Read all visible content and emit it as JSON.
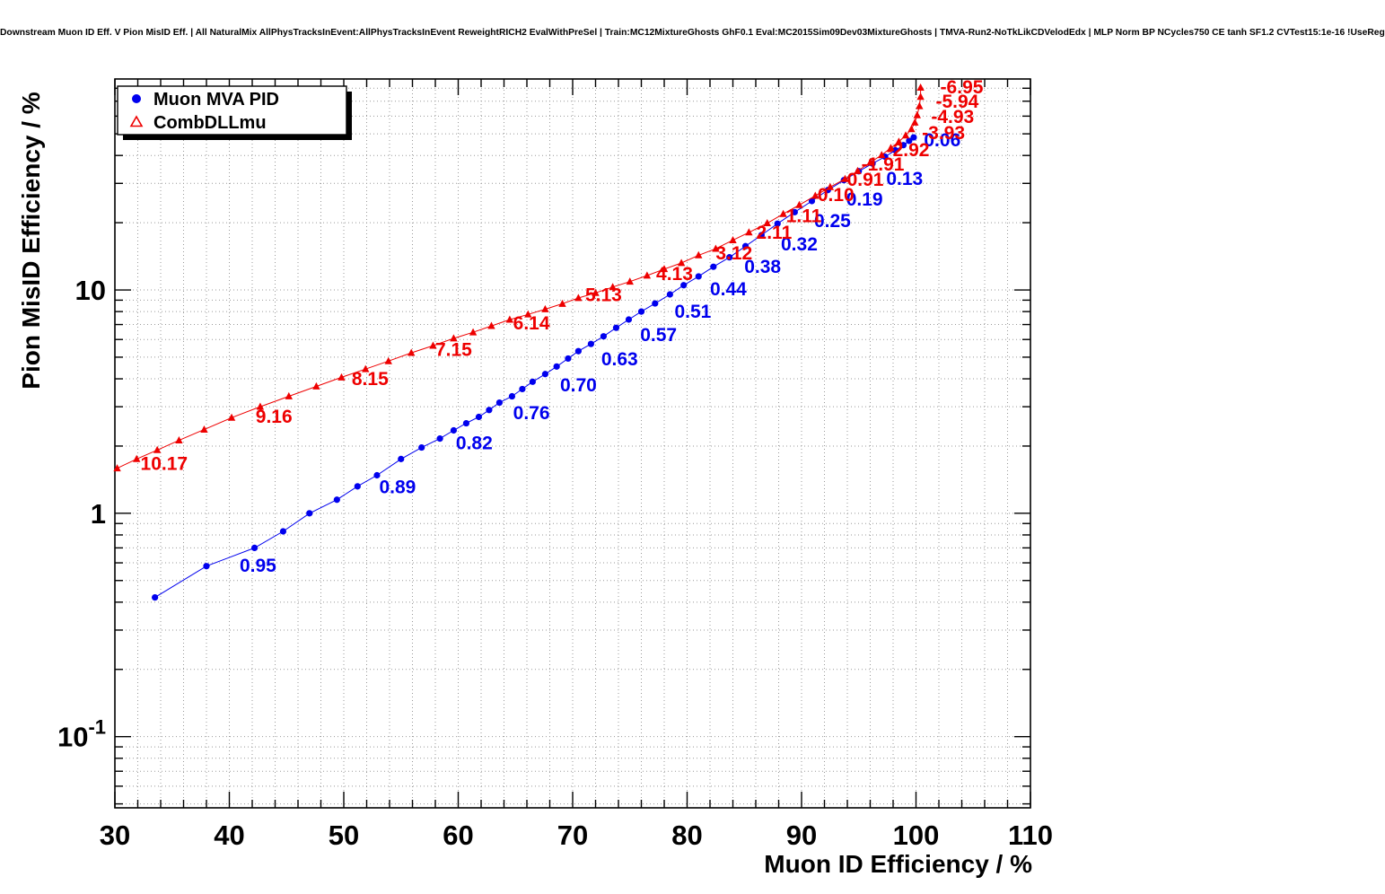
{
  "header": {
    "title": "Downstream Muon ID Eff. V Pion MisID Eff. | All NaturalMix AllPhysTracksInEvent:AllPhysTracksInEvent ReweightRICH2 EvalWithPreSel | Train:MC12MixtureGhosts GhF0.1 Eval:MC2015Sim09Dev03MixtureGhosts | TMVA-Run2-NoTkLikCDVelodEdx | MLP Norm BP NCycles750 CE tanh SF1.2 CVTest15:1e-16 !UseReg"
  },
  "chart_data": {
    "type": "scatter",
    "title": "",
    "xlabel": "Muon ID Efficiency / %",
    "ylabel": "Pion MisID Efficiency / %",
    "xlim": [
      30,
      110
    ],
    "ylim": [
      0.048,
      88
    ],
    "yscale": "log",
    "grid": true,
    "x_ticks": [
      30,
      40,
      50,
      60,
      70,
      80,
      90,
      100,
      110
    ],
    "y_ticks": [
      {
        "value": 0.1,
        "label": "10^-1"
      },
      {
        "value": 1,
        "label": "1"
      },
      {
        "value": 10,
        "label": "10"
      }
    ],
    "legend": {
      "position": "top-left",
      "entries": [
        {
          "label": "Muon MVA PID",
          "color": "#0000ee",
          "marker": "circle"
        },
        {
          "label": "CombDLLmu",
          "color": "#ee0000",
          "marker": "triangle"
        }
      ]
    },
    "series": [
      {
        "name": "Muon MVA PID",
        "color": "#0000ee",
        "marker": "circle",
        "points": [
          [
            33.5,
            0.42
          ],
          [
            38.0,
            0.58
          ],
          [
            42.2,
            0.7
          ],
          [
            44.7,
            0.83
          ],
          [
            47.0,
            1.0
          ],
          [
            49.4,
            1.15
          ],
          [
            51.2,
            1.32
          ],
          [
            52.9,
            1.48
          ],
          [
            55.0,
            1.75
          ],
          [
            56.8,
            1.97
          ],
          [
            58.4,
            2.16
          ],
          [
            59.6,
            2.35
          ],
          [
            60.7,
            2.53
          ],
          [
            61.8,
            2.7
          ],
          [
            62.7,
            2.9
          ],
          [
            63.6,
            3.13
          ],
          [
            64.7,
            3.34
          ],
          [
            65.6,
            3.6
          ],
          [
            66.5,
            3.88
          ],
          [
            67.6,
            4.2
          ],
          [
            68.6,
            4.54
          ],
          [
            69.6,
            4.93
          ],
          [
            70.5,
            5.32
          ],
          [
            71.6,
            5.73
          ],
          [
            72.7,
            6.2
          ],
          [
            73.8,
            6.77
          ],
          [
            74.9,
            7.37
          ],
          [
            76.0,
            8.0
          ],
          [
            77.2,
            8.7
          ],
          [
            78.5,
            9.55
          ],
          [
            79.7,
            10.5
          ],
          [
            81.0,
            11.5
          ],
          [
            82.3,
            12.7
          ],
          [
            83.7,
            14.0
          ],
          [
            85.1,
            15.7
          ],
          [
            86.5,
            17.6
          ],
          [
            87.9,
            19.8
          ],
          [
            89.4,
            22.3
          ],
          [
            90.9,
            25.0
          ],
          [
            92.3,
            28.0
          ],
          [
            93.7,
            31.0
          ],
          [
            95.0,
            34.0
          ],
          [
            96.2,
            36.8
          ],
          [
            97.3,
            39.5
          ],
          [
            98.2,
            42.2
          ],
          [
            98.9,
            44.5
          ],
          [
            99.4,
            46.5
          ],
          [
            99.8,
            48.2
          ]
        ],
        "labels": [
          {
            "text": "0.95",
            "x": 42.5,
            "y": 0.585
          },
          {
            "text": "0.89",
            "x": 54.7,
            "y": 1.31
          },
          {
            "text": "0.82",
            "x": 61.4,
            "y": 2.06
          },
          {
            "text": "0.76",
            "x": 66.4,
            "y": 2.82
          },
          {
            "text": "0.70",
            "x": 70.5,
            "y": 3.75
          },
          {
            "text": "0.63",
            "x": 74.1,
            "y": 4.91
          },
          {
            "text": "0.57",
            "x": 77.5,
            "y": 6.3
          },
          {
            "text": "0.51",
            "x": 80.5,
            "y": 8.0
          },
          {
            "text": "0.44",
            "x": 83.6,
            "y": 10.1
          },
          {
            "text": "0.38",
            "x": 86.6,
            "y": 12.7
          },
          {
            "text": "0.32",
            "x": 89.8,
            "y": 16.0
          },
          {
            "text": "0.25",
            "x": 92.7,
            "y": 20.4
          },
          {
            "text": "0.19",
            "x": 95.5,
            "y": 25.5
          },
          {
            "text": "0.13",
            "x": 99.0,
            "y": 31.5
          },
          {
            "text": "0.06",
            "x": 102.3,
            "y": 47.0
          }
        ]
      },
      {
        "name": "CombDLLmu",
        "color": "#ee0000",
        "marker": "triangle",
        "points": [
          [
            30.2,
            1.59
          ],
          [
            31.9,
            1.75
          ],
          [
            33.7,
            1.92
          ],
          [
            35.6,
            2.12
          ],
          [
            37.8,
            2.37
          ],
          [
            40.2,
            2.68
          ],
          [
            42.7,
            3.0
          ],
          [
            45.2,
            3.34
          ],
          [
            47.6,
            3.7
          ],
          [
            49.8,
            4.06
          ],
          [
            51.9,
            4.42
          ],
          [
            53.9,
            4.8
          ],
          [
            55.9,
            5.23
          ],
          [
            57.8,
            5.63
          ],
          [
            59.6,
            6.07
          ],
          [
            61.3,
            6.46
          ],
          [
            62.9,
            6.9
          ],
          [
            64.5,
            7.36
          ],
          [
            66.1,
            7.77
          ],
          [
            67.6,
            8.2
          ],
          [
            69.1,
            8.67
          ],
          [
            70.5,
            9.2
          ],
          [
            72.0,
            9.7
          ],
          [
            73.5,
            10.3
          ],
          [
            75.0,
            10.9
          ],
          [
            76.5,
            11.6
          ],
          [
            78.0,
            12.4
          ],
          [
            79.5,
            13.2
          ],
          [
            81.0,
            14.3
          ],
          [
            82.5,
            15.3
          ],
          [
            84.0,
            16.7
          ],
          [
            85.4,
            18.1
          ],
          [
            87.0,
            19.9
          ],
          [
            88.4,
            21.9
          ],
          [
            89.8,
            24.0
          ],
          [
            91.2,
            26.4
          ],
          [
            92.5,
            28.9
          ],
          [
            93.8,
            31.4
          ],
          [
            94.9,
            34.1
          ],
          [
            96.0,
            37.2
          ],
          [
            97.0,
            40.2
          ],
          [
            97.8,
            43.2
          ],
          [
            98.5,
            46.1
          ],
          [
            99.1,
            49.2
          ],
          [
            99.6,
            52.5
          ],
          [
            99.9,
            56.2
          ],
          [
            100.1,
            60.6
          ],
          [
            100.3,
            66.5
          ],
          [
            100.4,
            73.2
          ],
          [
            100.4,
            80.5
          ]
        ],
        "labels": [
          {
            "text": "10.17",
            "x": 34.3,
            "y": 1.67
          },
          {
            "text": "9.16",
            "x": 43.9,
            "y": 2.71
          },
          {
            "text": "8.15",
            "x": 52.3,
            "y": 4.0
          },
          {
            "text": "7.15",
            "x": 59.6,
            "y": 5.4
          },
          {
            "text": "6.14",
            "x": 66.4,
            "y": 7.1
          },
          {
            "text": "5.13",
            "x": 72.7,
            "y": 9.5
          },
          {
            "text": "4.13",
            "x": 78.9,
            "y": 11.8
          },
          {
            "text": "3.12",
            "x": 84.1,
            "y": 14.6
          },
          {
            "text": "2.11",
            "x": 87.6,
            "y": 18.1
          },
          {
            "text": "1.11",
            "x": 90.2,
            "y": 21.5
          },
          {
            "text": "0.10",
            "x": 93.0,
            "y": 26.7
          },
          {
            "text": "-0.91",
            "x": 95.3,
            "y": 31.2
          },
          {
            "text": "-1.91",
            "x": 97.1,
            "y": 36.5
          },
          {
            "text": "-2.92",
            "x": 99.3,
            "y": 42.4
          },
          {
            "text": "-3.93",
            "x": 102.4,
            "y": 50.5
          },
          {
            "text": "-4.93",
            "x": 103.2,
            "y": 59.7
          },
          {
            "text": "-5.94",
            "x": 103.6,
            "y": 69.8
          },
          {
            "text": "-6.95",
            "x": 104.0,
            "y": 80.9
          }
        ]
      }
    ],
    "colors": {
      "frame": "#000000",
      "grid": "#999999",
      "background": "#ffffff"
    }
  }
}
